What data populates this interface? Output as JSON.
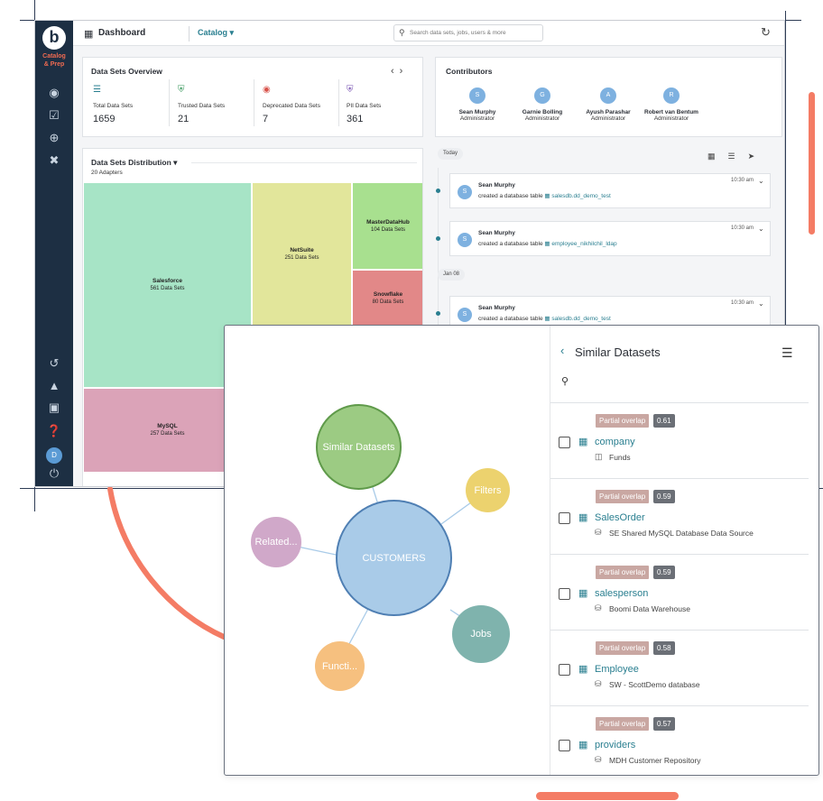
{
  "colors": {
    "sidebar": "#1d2f43",
    "accent": "#2a7f90",
    "brand_orange": "#f47c65",
    "node_center": "#a9cbe8",
    "node_similar": "#9ccb83",
    "node_filters": "#ecd26e",
    "node_jobs": "#7fb3ad",
    "node_functions": "#f6c07f",
    "node_related": "#d0a8c9"
  },
  "sidebar": {
    "logo_letter": "b",
    "logo_text_line1": "Catalog",
    "logo_text_line2": "& Prep",
    "icons": [
      "binoculars-icon",
      "clipboard-check-icon",
      "plus-circle-icon",
      "tools-icon",
      "history-icon",
      "bell-icon",
      "monitor-icon",
      "help-icon",
      "power-icon"
    ],
    "avatar_initial": "D"
  },
  "topbar": {
    "title": "Dashboard",
    "catalog_label": "Catalog",
    "search_placeholder": "Search data sets, jobs, users & more"
  },
  "overview": {
    "title": "Data Sets Overview",
    "stats": [
      {
        "label": "Total Data Sets",
        "value": "1659",
        "icon": "stack-icon",
        "color": "#2a7f90"
      },
      {
        "label": "Trusted Data Sets",
        "value": "21",
        "icon": "shield-check-icon",
        "color": "#3c9a5f"
      },
      {
        "label": "Deprecated Data Sets",
        "value": "7",
        "icon": "warning-icon",
        "color": "#d8534b"
      },
      {
        "label": "PII Data Sets",
        "value": "361",
        "icon": "shield-user-icon",
        "color": "#7a55b3"
      }
    ]
  },
  "contributors": {
    "title": "Contributors",
    "people": [
      {
        "initial": "S",
        "name": "Sean Murphy",
        "role": "Administrator"
      },
      {
        "initial": "G",
        "name": "Garnie Bolling",
        "role": "Administrator"
      },
      {
        "initial": "A",
        "name": "Ayush Parashar",
        "role": "Administrator"
      },
      {
        "initial": "R",
        "name": "Robert van Bentum",
        "role": "Administrator"
      }
    ]
  },
  "distribution": {
    "title": "Data Sets Distribution",
    "subtitle": "20 Adapters",
    "tiles": [
      {
        "name": "Salesforce",
        "count": "561 Data Sets",
        "color": "#a7e4c6"
      },
      {
        "name": "NetSuite",
        "count": "251 Data Sets",
        "color": "#e2e69b"
      },
      {
        "name": "MasterDataHub",
        "count": "104 Data Sets",
        "color": "#a8e08f"
      },
      {
        "name": "Snowflake",
        "count": "80 Data Sets",
        "color": "#e28888"
      },
      {
        "name": "MySQL",
        "count": "257 Data Sets",
        "color": "#dba3b8"
      }
    ]
  },
  "activity": {
    "groups": [
      "Today",
      "Jan 08"
    ],
    "items": [
      {
        "initial": "S",
        "user": "Sean Murphy",
        "action": "created a database table",
        "target": "salesdb.dd_demo_test",
        "time": "10:30 am"
      },
      {
        "initial": "S",
        "user": "Sean Murphy",
        "action": "created a database table",
        "target": "employee_nikhilchil_ldap",
        "time": "10:30 am"
      },
      {
        "initial": "S",
        "user": "Sean Murphy",
        "action": "created a database table",
        "target": "salesdb.dd_demo_test",
        "time": "10:30 am"
      }
    ]
  },
  "graph": {
    "center": "CUSTOMERS",
    "nodes": [
      "Similar Datasets",
      "Filters",
      "Jobs",
      "Functi...",
      "Related..."
    ]
  },
  "similar": {
    "title": "Similar Datasets",
    "items": [
      {
        "badge": "Partial overlap",
        "score": "0.61",
        "name": "company",
        "source": "Funds",
        "source_icon": "folder-icon"
      },
      {
        "badge": "Partial overlap",
        "score": "0.59",
        "name": "SalesOrder",
        "source": "SE Shared MySQL Database Data Source",
        "source_icon": "database-icon"
      },
      {
        "badge": "Partial overlap",
        "score": "0.59",
        "name": "salesperson",
        "source": "Boomi Data Warehouse",
        "source_icon": "database-icon"
      },
      {
        "badge": "Partial overlap",
        "score": "0.58",
        "name": "Employee",
        "source": "SW - ScottDemo database",
        "source_icon": "database-icon"
      },
      {
        "badge": "Partial overlap",
        "score": "0.57",
        "name": "providers",
        "source": "MDH Customer Repository",
        "source_icon": "database-icon"
      }
    ]
  }
}
